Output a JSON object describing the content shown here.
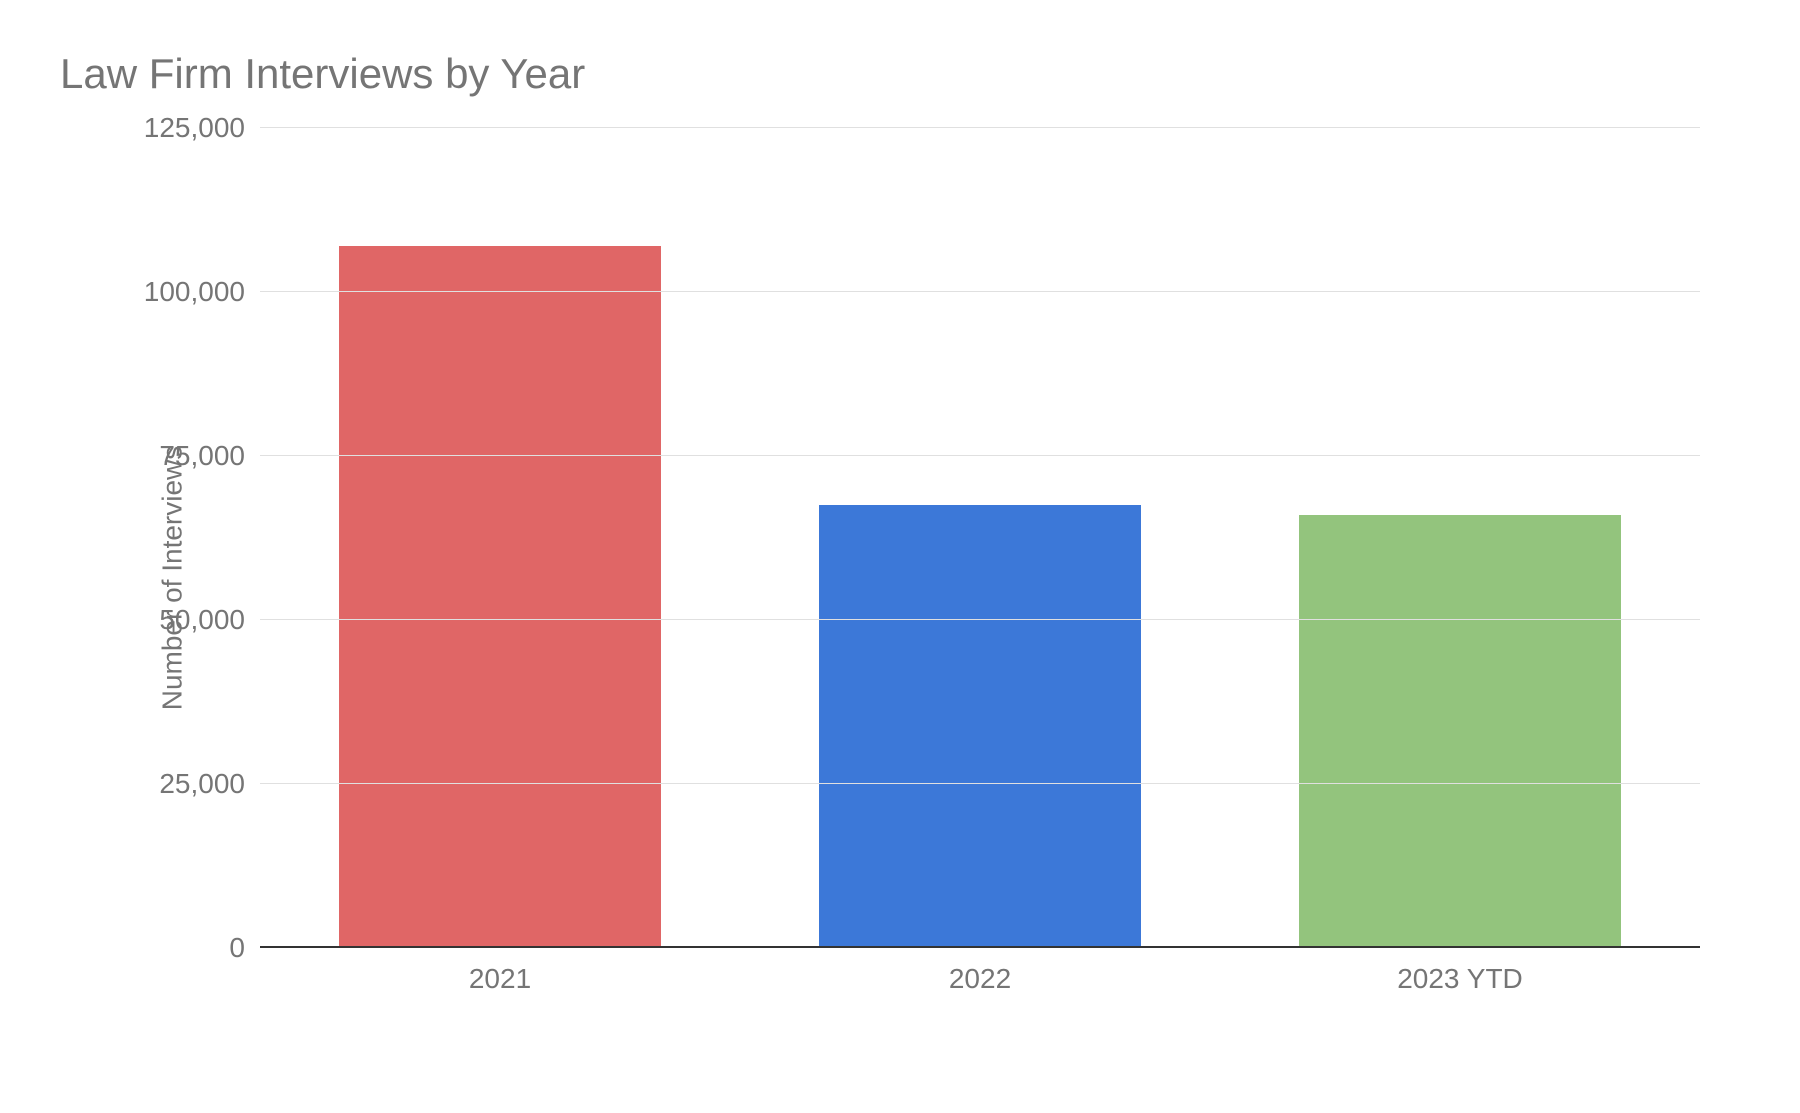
{
  "chart": {
    "type": "bar",
    "title": "Law Firm Interviews by Year",
    "title_fontsize": 42,
    "title_color": "#757575",
    "ylabel": "Number of Interviews",
    "label_fontsize": 28,
    "label_color": "#757575",
    "categories": [
      "2021",
      "2022",
      "2023 YTD"
    ],
    "values": [
      107000,
      67500,
      66000
    ],
    "bar_colors": [
      "#e06666",
      "#3c78d8",
      "#93c47d"
    ],
    "ylim": [
      0,
      125000
    ],
    "ytick_step": 25000,
    "ytick_labels": [
      "0",
      "25,000",
      "50,000",
      "75,000",
      "100,000",
      "125,000"
    ],
    "tick_fontsize": 28,
    "tick_color": "#757575",
    "background_color": "#ffffff",
    "grid_color": "#e0e0e0",
    "baseline_color": "#333333",
    "bar_width": 0.67
  }
}
